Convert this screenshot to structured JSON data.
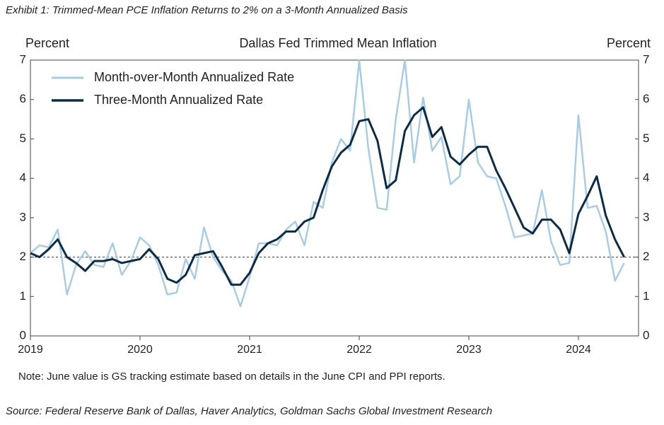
{
  "exhibit_title": "Exhibit 1: Trimmed-Mean PCE Inflation Returns to 2% on a 3-Month Annualized Basis",
  "chart_data": {
    "type": "line",
    "title": "Dallas Fed Trimmed Mean Inflation",
    "y_label": "Percent",
    "y2_label": "Percent",
    "categories": [
      "2019",
      null,
      null,
      null,
      null,
      null,
      null,
      null,
      null,
      null,
      null,
      null,
      "2020",
      null,
      null,
      null,
      null,
      null,
      null,
      null,
      null,
      null,
      null,
      null,
      "2021",
      null,
      null,
      null,
      null,
      null,
      null,
      null,
      null,
      null,
      null,
      null,
      "2022",
      null,
      null,
      null,
      null,
      null,
      null,
      null,
      null,
      null,
      null,
      null,
      "2023",
      null,
      null,
      null,
      null,
      null,
      null,
      null,
      null,
      null,
      null,
      null,
      "2024",
      null,
      null,
      null,
      null,
      null
    ],
    "series": [
      {
        "name": "Month-over-Month Annualized Rate",
        "color": "#a9cbe4",
        "width": 2.5,
        "values": [
          2.1,
          2.3,
          2.25,
          2.7,
          1.05,
          1.8,
          2.15,
          1.8,
          1.75,
          2.35,
          1.55,
          1.9,
          2.5,
          2.3,
          1.8,
          1.05,
          1.1,
          1.95,
          1.45,
          2.75,
          2.0,
          1.65,
          1.4,
          0.75,
          1.5,
          2.35,
          2.35,
          2.3,
          2.7,
          2.9,
          2.3,
          3.4,
          3.25,
          4.4,
          5.0,
          4.7,
          7.0,
          4.75,
          3.25,
          3.2,
          5.5,
          7.0,
          4.4,
          6.05,
          4.7,
          5.05,
          3.85,
          4.05,
          6.0,
          4.4,
          4.05,
          4.0,
          3.3,
          2.5,
          2.55,
          2.6,
          3.7,
          2.4,
          1.8,
          1.85,
          5.6,
          3.25,
          3.3,
          2.65,
          1.4,
          1.85
        ]
      },
      {
        "name": "Three-Month Annualized Rate",
        "color": "#0d2b45",
        "width": 3,
        "values": [
          2.1,
          2.0,
          2.2,
          2.45,
          2.0,
          1.85,
          1.65,
          1.9,
          1.9,
          1.95,
          1.85,
          1.9,
          1.95,
          2.2,
          1.95,
          1.45,
          1.35,
          1.55,
          2.05,
          2.1,
          2.15,
          1.75,
          1.3,
          1.3,
          1.6,
          2.1,
          2.35,
          2.45,
          2.65,
          2.65,
          2.9,
          3.0,
          3.7,
          4.3,
          4.65,
          4.85,
          5.45,
          5.5,
          4.95,
          3.75,
          3.95,
          5.2,
          5.6,
          5.8,
          5.05,
          5.3,
          4.55,
          4.35,
          4.6,
          4.8,
          4.8,
          4.2,
          3.75,
          3.25,
          2.75,
          2.6,
          2.95,
          2.95,
          2.7,
          2.1,
          3.1,
          3.55,
          4.05,
          3.05,
          2.45,
          2.0
        ]
      }
    ],
    "ylim": [
      0,
      7
    ],
    "yticks": [
      0,
      1,
      2,
      3,
      4,
      5,
      6,
      7
    ],
    "y2lim": [
      0,
      7
    ],
    "y2ticks": [
      0,
      1,
      2,
      3,
      4,
      5,
      6,
      7
    ],
    "reference_line": 2,
    "legend": "upper left",
    "note": "Note: June value is GS tracking estimate based on details in the June CPI and PPI reports."
  },
  "source": "Source: Federal Reserve Bank of Dallas, Haver Analytics, Goldman Sachs Global Investment Research"
}
